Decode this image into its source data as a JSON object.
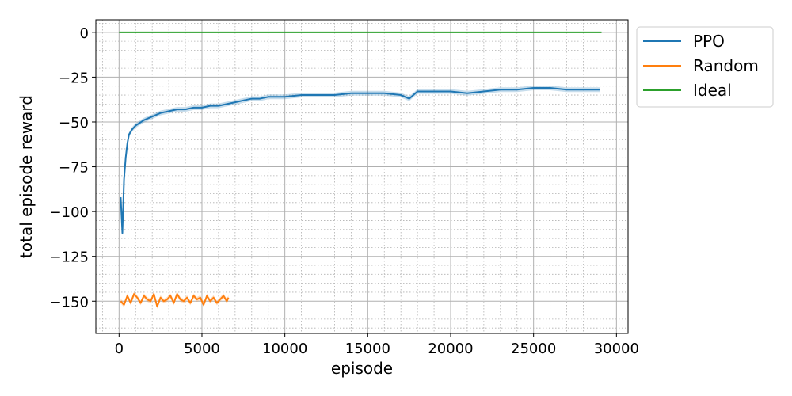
{
  "chart_data": {
    "type": "line",
    "title": "",
    "xlabel": "episode",
    "ylabel": "total episode reward",
    "xlim": [
      -1400,
      30700
    ],
    "ylim": [
      -168,
      7
    ],
    "x_ticks": [
      0,
      5000,
      10000,
      15000,
      20000,
      25000,
      30000
    ],
    "x_tick_labels": [
      "0",
      "5000",
      "10000",
      "15000",
      "20000",
      "25000",
      "30000"
    ],
    "y_ticks": [
      0,
      -25,
      -50,
      -75,
      -100,
      -125,
      -150
    ],
    "y_tick_labels": [
      "0",
      "−25",
      "−50",
      "−75",
      "−100",
      "−125",
      "−150"
    ],
    "grid": "major and minor",
    "legend_position": "outside-upper-right",
    "series": [
      {
        "name": "PPO",
        "color": "#1f77b4",
        "band": true,
        "x": [
          100,
          200,
          300,
          400,
          500,
          600,
          800,
          1000,
          1500,
          2000,
          2500,
          3000,
          3500,
          4000,
          4500,
          5000,
          5500,
          6000,
          6500,
          7000,
          7500,
          8000,
          8500,
          9000,
          10000,
          11000,
          12000,
          13000,
          14000,
          15000,
          16000,
          17000,
          17500,
          18000,
          19000,
          20000,
          21000,
          22000,
          23000,
          24000,
          25000,
          26000,
          27000,
          28000,
          29000
        ],
        "values": [
          -92,
          -112,
          -82,
          -70,
          -62,
          -57,
          -54,
          -52,
          -49,
          -47,
          -45,
          -44,
          -43,
          -43,
          -42,
          -42,
          -41,
          -41,
          -40,
          -39,
          -38,
          -37,
          -37,
          -36,
          -36,
          -35,
          -35,
          -35,
          -34,
          -34,
          -34,
          -35,
          -37,
          -33,
          -33,
          -33,
          -34,
          -33,
          -32,
          -32,
          -31,
          -31,
          -32,
          -32,
          -32
        ]
      },
      {
        "name": "Random",
        "color": "#ff7f0e",
        "band": true,
        "x": [
          100,
          300,
          500,
          700,
          900,
          1100,
          1300,
          1500,
          1700,
          1900,
          2100,
          2300,
          2500,
          2700,
          2900,
          3100,
          3300,
          3500,
          3700,
          3900,
          4100,
          4300,
          4500,
          4700,
          4900,
          5100,
          5300,
          5500,
          5700,
          5900,
          6100,
          6300,
          6500,
          6600
        ],
        "values": [
          -150,
          -152,
          -147,
          -151,
          -146,
          -148,
          -151,
          -147,
          -149,
          -150,
          -146,
          -153,
          -148,
          -150,
          -149,
          -147,
          -151,
          -146,
          -149,
          -150,
          -148,
          -151,
          -147,
          -149,
          -148,
          -152,
          -147,
          -150,
          -148,
          -151,
          -149,
          -147,
          -150,
          -148
        ]
      },
      {
        "name": "Ideal",
        "color": "#2ca02c",
        "band": false,
        "x": [
          0,
          29100
        ],
        "values": [
          0,
          0
        ]
      }
    ]
  }
}
